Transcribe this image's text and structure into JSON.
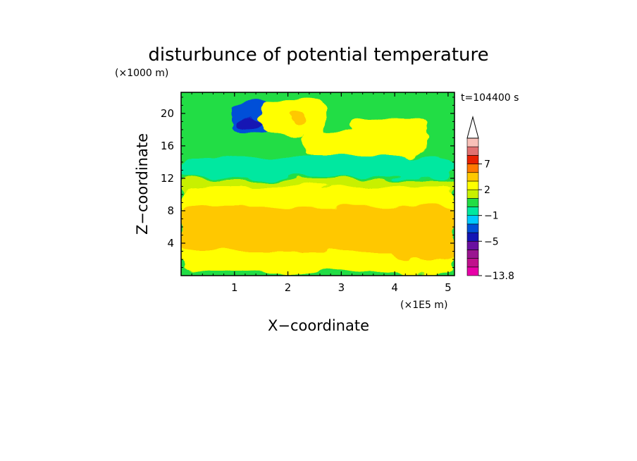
{
  "chart_data": {
    "type": "heatmap",
    "title": "disturbunce of potential temperature",
    "time_label": "t=104400 s",
    "y_unit": "(×1000 m)",
    "x_unit": "(×1E5 m)",
    "xlabel": "X−coordinate",
    "ylabel": "Z−coordinate",
    "xlim": [
      0,
      5.12
    ],
    "ylim": [
      0,
      22.6
    ],
    "x_ticks": [
      1,
      2,
      3,
      4,
      5
    ],
    "y_ticks": [
      4,
      8,
      12,
      16,
      20
    ],
    "x_tick_labels": [
      "1",
      "2",
      "3",
      "4",
      "5"
    ],
    "y_tick_labels": [
      "4",
      "8",
      "12",
      "16",
      "20"
    ],
    "grid": false,
    "colorbar": {
      "levels": [
        -13.8,
        -11,
        -9,
        -7,
        -5,
        -3,
        -2,
        -1,
        0,
        1,
        2,
        3,
        5,
        7,
        9,
        11
      ],
      "colors": [
        "#e800a8",
        "#c0108c",
        "#9a1490",
        "#6a10a0",
        "#1414b4",
        "#0050d8",
        "#00c8ff",
        "#00e8a0",
        "#22dd44",
        "#c8f000",
        "#ffff00",
        "#ffc800",
        "#ff7800",
        "#e82000",
        "#e07070",
        "#f8c0b8"
      ],
      "tick_labels": [
        "7",
        "2",
        "−1",
        "−5",
        "−13.8"
      ],
      "tick_values": [
        7,
        2,
        -1,
        -5,
        -13.8
      ],
      "extend": "max"
    },
    "field_regions": [
      {
        "level": 0,
        "x": [
          0.0,
          5.12
        ],
        "z": [
          0.0,
          22.6
        ]
      },
      {
        "level": 1,
        "x": [
          0.0,
          5.12
        ],
        "z": [
          1.0,
          12.0
        ]
      },
      {
        "level": 2,
        "x": [
          0.0,
          5.12
        ],
        "z": [
          2.5,
          11.0
        ]
      },
      {
        "level": 3,
        "x": [
          0.0,
          5.12
        ],
        "z": [
          3.0,
          8.5
        ]
      },
      {
        "level": 2,
        "x": [
          0.0,
          5.12
        ],
        "z": [
          0.5,
          3.0
        ]
      },
      {
        "level": -1,
        "x": [
          0.0,
          5.12
        ],
        "z": [
          12.2,
          14.5
        ]
      },
      {
        "level": -3,
        "x": [
          0.95,
          1.7
        ],
        "z": [
          17.5,
          21.5
        ]
      },
      {
        "level": -5,
        "x": [
          1.0,
          1.5
        ],
        "z": [
          18.0,
          19.5
        ]
      },
      {
        "level": 2,
        "x": [
          1.5,
          2.7
        ],
        "z": [
          17.5,
          21.5
        ]
      },
      {
        "level": 3,
        "x": [
          2.0,
          2.3
        ],
        "z": [
          18.5,
          20.0
        ]
      },
      {
        "level": 2,
        "x": [
          3.2,
          4.6
        ],
        "z": [
          15.0,
          19.5
        ]
      },
      {
        "level": 2,
        "x": [
          2.3,
          4.5
        ],
        "z": [
          14.5,
          18.0
        ]
      },
      {
        "level": 3,
        "x": [
          4.0,
          5.12
        ],
        "z": [
          2.0,
          8.0
        ]
      }
    ]
  }
}
